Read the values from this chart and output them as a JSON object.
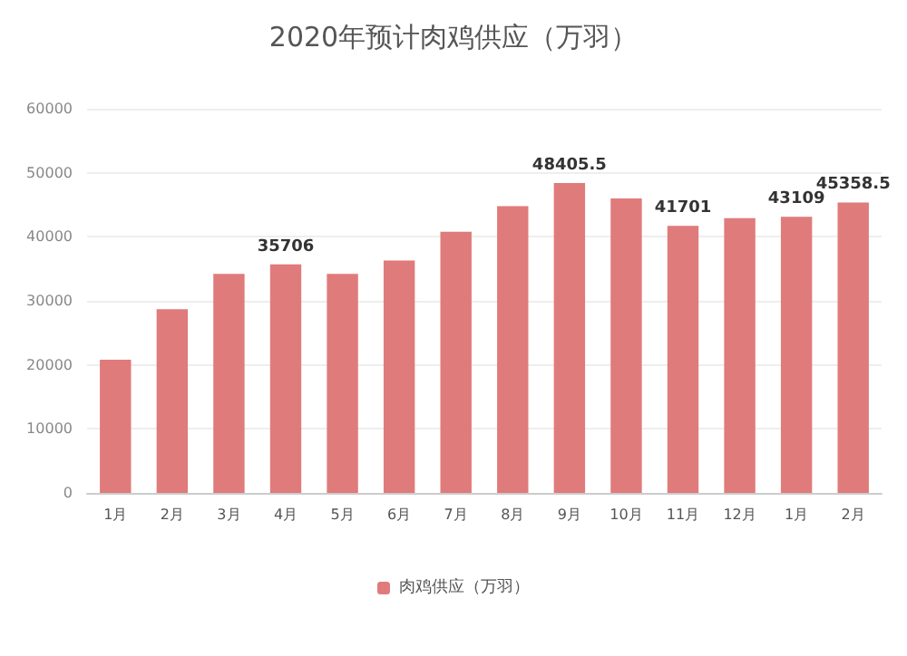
{
  "chart_data": {
    "type": "bar",
    "title": "2020年预计肉鸡供应（万羽）",
    "categories": [
      "1月",
      "2月",
      "3月",
      "4月",
      "5月",
      "6月",
      "7月",
      "8月",
      "9月",
      "10月",
      "11月",
      "12月",
      "1月",
      "2月"
    ],
    "series": [
      {
        "name": "肉鸡供应（万羽）",
        "color": "#e07b7b",
        "values": [
          20800,
          28700,
          34200,
          35706,
          34200,
          36300,
          40800,
          44800,
          48405.5,
          46000,
          41701,
          42900,
          43109,
          45358.5
        ],
        "value_labels": [
          null,
          null,
          null,
          "35706",
          null,
          null,
          null,
          null,
          "48405.5",
          null,
          "41701",
          null,
          "43109",
          "45358.5"
        ]
      }
    ],
    "ylim": [
      0,
      60000
    ],
    "yticks": [
      0,
      10000,
      20000,
      30000,
      40000,
      50000,
      60000
    ],
    "grid": "y",
    "legend": "bottom"
  }
}
